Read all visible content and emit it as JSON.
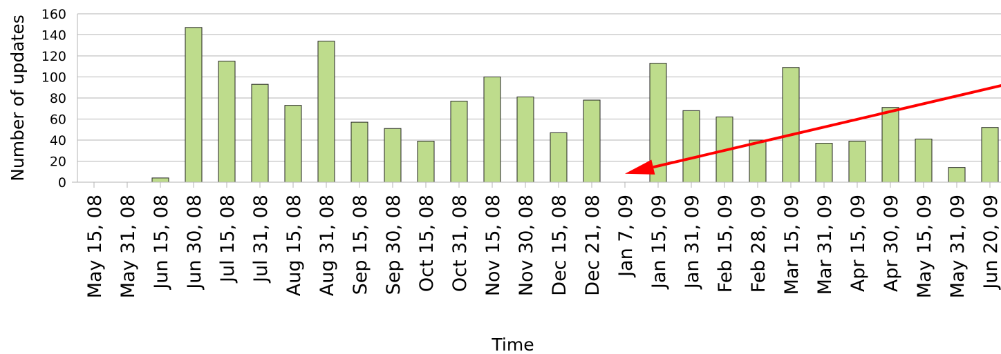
{
  "chart_data": {
    "type": "bar",
    "title": "",
    "xlabel": "Time",
    "ylabel": "Number of updates",
    "ylim": [
      0,
      160
    ],
    "yticks": [
      0,
      20,
      40,
      60,
      80,
      100,
      120,
      140,
      160
    ],
    "grid": true,
    "legend": "none",
    "categories": [
      "May 15, 08",
      "May 31, 08",
      "Jun 15, 08",
      "Jun 30, 08",
      "Jul 15, 08",
      "Jul 31, 08",
      "Aug 15, 08",
      "Aug 31, 08",
      "Sep 15, 08",
      "Sep 30, 08",
      "Oct 15, 08",
      "Oct 31, 08",
      "Nov 15, 08",
      "Nov 30, 08",
      "Dec 15, 08",
      "Dec 21, 08",
      "Jan 7, 09",
      "Jan 15, 09",
      "Jan 31, 09",
      "Feb 15, 09",
      "Feb 28, 09",
      "Mar 15, 09",
      "Mar 31, 09",
      "Apr 15, 09",
      "Apr 30, 09",
      "May 15, 09",
      "May 31, 09",
      "Jun 20, 09"
    ],
    "values": [
      0,
      0,
      4,
      147,
      115,
      93,
      73,
      134,
      57,
      51,
      39,
      77,
      100,
      81,
      47,
      78,
      0,
      113,
      68,
      62,
      40,
      109,
      37,
      39,
      71,
      41,
      14,
      52
    ],
    "colors": {
      "bar_fill": "#bedc8c",
      "bar_stroke": "#222222",
      "grid": "#b3b3b3",
      "annotation_arrow": "#ff0000"
    },
    "annotation": {
      "type": "arrow",
      "from": {
        "x": "Jun 20, 09",
        "y": 93
      },
      "to": {
        "x": "Jan 7, 09",
        "y": 8
      }
    }
  }
}
